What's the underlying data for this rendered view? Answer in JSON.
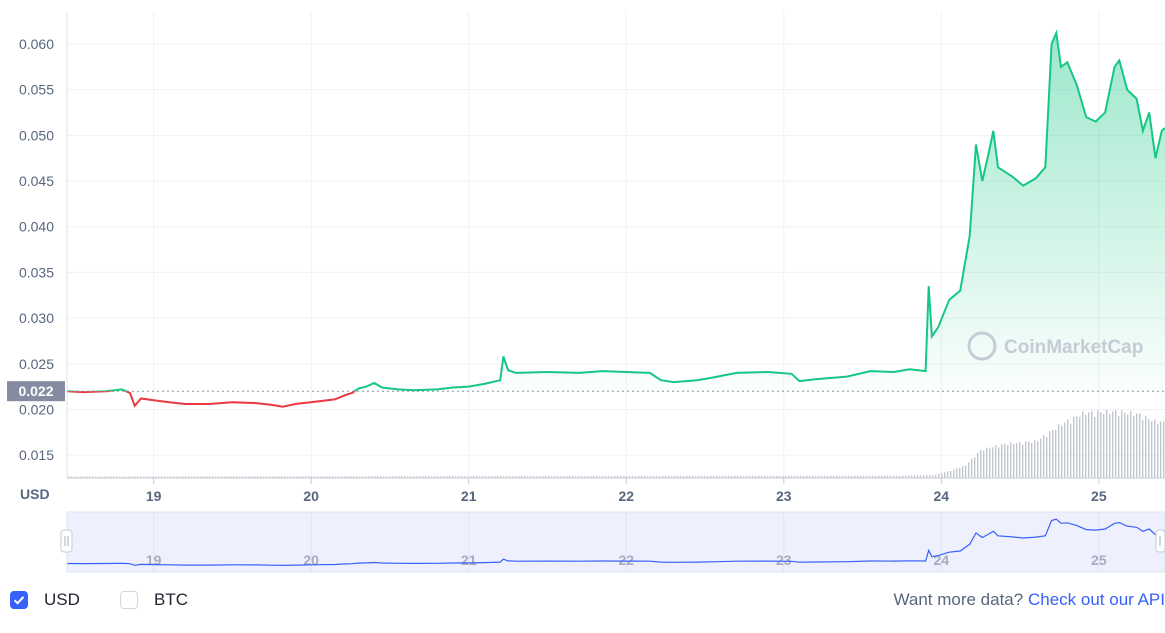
{
  "chart_data": {
    "type": "line",
    "currency_label": "USD",
    "y_ticks": [
      "0.060",
      "0.055",
      "0.050",
      "0.045",
      "0.040",
      "0.035",
      "0.030",
      "0.025",
      "0.020",
      "0.015"
    ],
    "x_ticks": [
      "19",
      "20",
      "21",
      "22",
      "23",
      "24",
      "25"
    ],
    "current_price_label": "0.022",
    "ylim": [
      0.0125,
      0.0635
    ],
    "xlim": [
      18.45,
      25.42
    ],
    "reference_price": 0.022,
    "watermark": "CoinMarketCap",
    "price_series": [
      [
        18.45,
        0.022
      ],
      [
        18.55,
        0.0219
      ],
      [
        18.7,
        0.022
      ],
      [
        18.8,
        0.0222
      ],
      [
        18.85,
        0.0218
      ],
      [
        18.88,
        0.0204
      ],
      [
        18.92,
        0.0212
      ],
      [
        19.0,
        0.021
      ],
      [
        19.1,
        0.0208
      ],
      [
        19.2,
        0.0206
      ],
      [
        19.35,
        0.0206
      ],
      [
        19.5,
        0.0208
      ],
      [
        19.65,
        0.0207
      ],
      [
        19.75,
        0.0205
      ],
      [
        19.82,
        0.0203
      ],
      [
        19.9,
        0.0206
      ],
      [
        20.05,
        0.0209
      ],
      [
        20.15,
        0.0211
      ],
      [
        20.22,
        0.0216
      ],
      [
        20.26,
        0.0218
      ],
      [
        20.3,
        0.0223
      ],
      [
        20.35,
        0.0225
      ],
      [
        20.4,
        0.0229
      ],
      [
        20.45,
        0.0224
      ],
      [
        20.55,
        0.0222
      ],
      [
        20.65,
        0.0221
      ],
      [
        20.8,
        0.0222
      ],
      [
        20.9,
        0.0224
      ],
      [
        21.0,
        0.0225
      ],
      [
        21.1,
        0.0228
      ],
      [
        21.2,
        0.0232
      ],
      [
        21.22,
        0.0258
      ],
      [
        21.25,
        0.0243
      ],
      [
        21.3,
        0.024
      ],
      [
        21.5,
        0.0241
      ],
      [
        21.7,
        0.024
      ],
      [
        21.85,
        0.0242
      ],
      [
        22.0,
        0.0241
      ],
      [
        22.15,
        0.024
      ],
      [
        22.22,
        0.0232
      ],
      [
        22.3,
        0.023
      ],
      [
        22.45,
        0.0232
      ],
      [
        22.55,
        0.0235
      ],
      [
        22.7,
        0.024
      ],
      [
        22.9,
        0.0241
      ],
      [
        23.05,
        0.0239
      ],
      [
        23.1,
        0.0231
      ],
      [
        23.2,
        0.0233
      ],
      [
        23.4,
        0.0236
      ],
      [
        23.55,
        0.0242
      ],
      [
        23.7,
        0.0241
      ],
      [
        23.8,
        0.0244
      ],
      [
        23.9,
        0.0242
      ],
      [
        23.92,
        0.0335
      ],
      [
        23.94,
        0.028
      ],
      [
        23.98,
        0.029
      ],
      [
        24.05,
        0.032
      ],
      [
        24.12,
        0.033
      ],
      [
        24.18,
        0.039
      ],
      [
        24.22,
        0.049
      ],
      [
        24.26,
        0.045
      ],
      [
        24.3,
        0.048
      ],
      [
        24.33,
        0.0505
      ],
      [
        24.36,
        0.0465
      ],
      [
        24.45,
        0.0455
      ],
      [
        24.52,
        0.0445
      ],
      [
        24.6,
        0.0453
      ],
      [
        24.66,
        0.0465
      ],
      [
        24.7,
        0.06
      ],
      [
        24.73,
        0.0612
      ],
      [
        24.76,
        0.0575
      ],
      [
        24.8,
        0.058
      ],
      [
        24.86,
        0.0555
      ],
      [
        24.92,
        0.052
      ],
      [
        24.98,
        0.0515
      ],
      [
        25.04,
        0.0525
      ],
      [
        25.1,
        0.0575
      ],
      [
        25.13,
        0.0582
      ],
      [
        25.18,
        0.055
      ],
      [
        25.24,
        0.054
      ],
      [
        25.28,
        0.0505
      ],
      [
        25.32,
        0.0525
      ],
      [
        25.36,
        0.0475
      ],
      [
        25.4,
        0.0505
      ],
      [
        25.42,
        0.0508
      ]
    ],
    "volume_series": [
      [
        18.45,
        0.02
      ],
      [
        23.7,
        0.03
      ],
      [
        23.95,
        0.04
      ],
      [
        24.05,
        0.1
      ],
      [
        24.15,
        0.18
      ],
      [
        24.25,
        0.4
      ],
      [
        24.4,
        0.48
      ],
      [
        24.6,
        0.52
      ],
      [
        24.75,
        0.75
      ],
      [
        24.9,
        0.92
      ],
      [
        25.1,
        0.94
      ],
      [
        25.25,
        0.9
      ],
      [
        25.35,
        0.8
      ],
      [
        25.42,
        0.78
      ]
    ],
    "navigator_ticks": [
      "19",
      "20",
      "21",
      "22",
      "23",
      "24",
      "25"
    ],
    "colors": {
      "up": "#16c784",
      "down": "#ea3943",
      "grid": "#eff2f5",
      "axis_text": "#58667e",
      "volume": "#b7bdc6",
      "navigator_line": "#3861fb",
      "navigator_bg": "#eef0fd",
      "price_badge": "#858ca2"
    }
  },
  "footer": {
    "usd_label": "USD",
    "btc_label": "BTC",
    "more_data_text": "Want more data?",
    "api_link": "Check out our API"
  }
}
